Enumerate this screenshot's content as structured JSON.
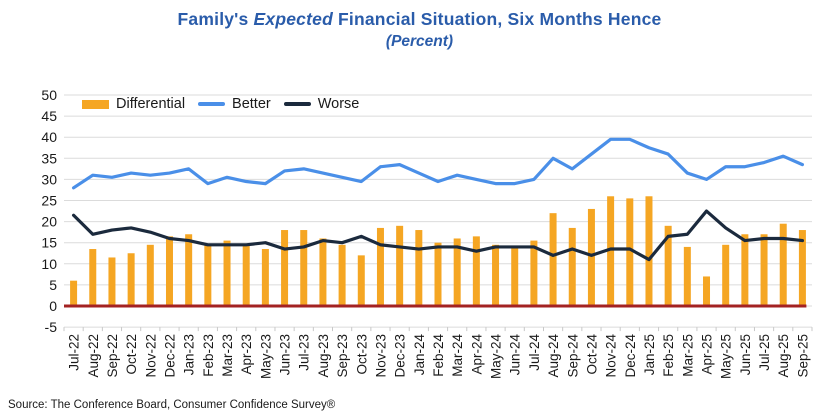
{
  "title": {
    "part1": "Family's ",
    "part2_italic": "Expected",
    "part3": " Financial Situation, Six Months Hence",
    "subtitle": "(Percent)"
  },
  "source_note": "Source: The Conference Board, Consumer Confidence Survey®",
  "colors": {
    "title": "#2A5CAA",
    "differential_bar": "#F5A623",
    "better_line": "#4A8FE8",
    "worse_line": "#1B2A3D",
    "zero_line": "#A32222"
  },
  "chart_data": {
    "type": "combo (bar + line)",
    "title": "Family's Expected Financial Situation, Six Months Hence",
    "subtitle": "(Percent)",
    "xlabel": "",
    "ylabel": "",
    "ylim": [
      -5,
      50
    ],
    "ytick_step": 5,
    "grid": true,
    "legend_position": "top-left",
    "zero_line_color": "#A32222",
    "categories": [
      "Jul-22",
      "Aug-22",
      "Sep-22",
      "Oct-22",
      "Nov-22",
      "Dec-22",
      "Jan-23",
      "Feb-23",
      "Mar-23",
      "Apr-23",
      "May-23",
      "Jun-23",
      "Jul-23",
      "Aug-23",
      "Sep-23",
      "Oct-23",
      "Nov-23",
      "Dec-23",
      "Jan-24",
      "Feb-24",
      "Mar-24",
      "Apr-24",
      "May-24",
      "Jun-24",
      "Jul-24",
      "Aug-24",
      "Sep-24",
      "Oct-24",
      "Nov-24",
      "Dec-24",
      "Jan-25",
      "Feb-25",
      "Mar-25",
      "Apr-25",
      "May-25",
      "Jun-25",
      "Jul-25",
      "Aug-25",
      "Sep-25"
    ],
    "series": [
      {
        "name": "Differential",
        "type": "bar",
        "color": "#F5A623",
        "values": [
          6,
          13.5,
          11.5,
          12.5,
          14.5,
          16.5,
          17,
          14.5,
          15.5,
          14.5,
          13.5,
          18,
          18,
          16,
          14.5,
          12,
          18.5,
          19,
          18,
          15,
          16,
          16.5,
          14.5,
          14,
          15.5,
          22,
          18.5,
          23,
          26,
          25.5,
          26,
          19,
          14,
          7,
          14.5,
          17,
          17,
          19.5,
          18
        ]
      },
      {
        "name": "Better",
        "type": "line",
        "color": "#4A8FE8",
        "values": [
          28,
          31,
          30.5,
          31.5,
          31,
          31.5,
          32.5,
          29,
          30.5,
          29.5,
          29,
          32,
          32.5,
          31.5,
          30.5,
          29.5,
          33,
          33.5,
          31.5,
          29.5,
          31,
          30,
          29,
          29,
          30,
          35,
          32.5,
          36,
          39.5,
          39.5,
          37.5,
          36,
          31.5,
          30,
          33,
          33,
          34,
          35.5,
          33.5
        ]
      },
      {
        "name": "Worse",
        "type": "line",
        "color": "#1B2A3D",
        "values": [
          21.5,
          17,
          18,
          18.5,
          17.5,
          16,
          15.5,
          14.5,
          14.5,
          14.5,
          15,
          13.5,
          14,
          15.5,
          15,
          16.5,
          14.5,
          14,
          13.5,
          14,
          14,
          13,
          14,
          14,
          14,
          12,
          13.5,
          12,
          13.5,
          13.5,
          11,
          16.5,
          17,
          22.5,
          18.5,
          15.5,
          16,
          16,
          15.5
        ]
      }
    ]
  }
}
